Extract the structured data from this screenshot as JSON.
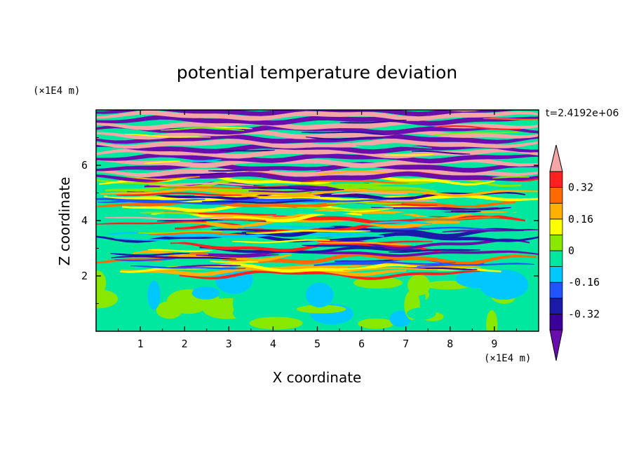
{
  "chart_data": {
    "type": "heatmap",
    "title": "potential temperature deviation",
    "xlabel": "X coordinate",
    "ylabel": "Z coordinate",
    "x_unit": "(×1E4 m)",
    "y_unit": "(×1E4 m)",
    "time_label": "t=2.4192e+06",
    "xlim": [
      0,
      10
    ],
    "ylim": [
      0,
      8
    ],
    "x_ticks": [
      "1",
      "2",
      "3",
      "4",
      "5",
      "6",
      "7",
      "8",
      "9"
    ],
    "y_ticks": [
      "2",
      "4",
      "6"
    ],
    "colorbar": {
      "levels": [
        -0.4,
        -0.32,
        -0.24,
        -0.16,
        -0.08,
        0,
        0.08,
        0.16,
        0.24,
        0.32,
        0.4
      ],
      "tick_labels": [
        "0.32",
        "0.16",
        "0",
        "-0.16",
        "-0.32"
      ],
      "colors": [
        "#6a0dad",
        "#3b0099",
        "#1a1aa8",
        "#1f55ff",
        "#00c8ff",
        "#00e8a0",
        "#88e800",
        "#ffff00",
        "#ffb000",
        "#ff6a00",
        "#ff2020",
        "#f4a5a5"
      ],
      "extend": "both"
    },
    "regions": [
      {
        "z_range": [
          0,
          2
        ],
        "pattern": "smooth cells of -0.08 to 0.08"
      },
      {
        "z_range": [
          2,
          5.5
        ],
        "pattern": "fine layered bands spanning all levels"
      },
      {
        "z_range": [
          5.5,
          8
        ],
        "pattern": "broad alternating bands below -0.4 and above 0.4"
      }
    ]
  }
}
